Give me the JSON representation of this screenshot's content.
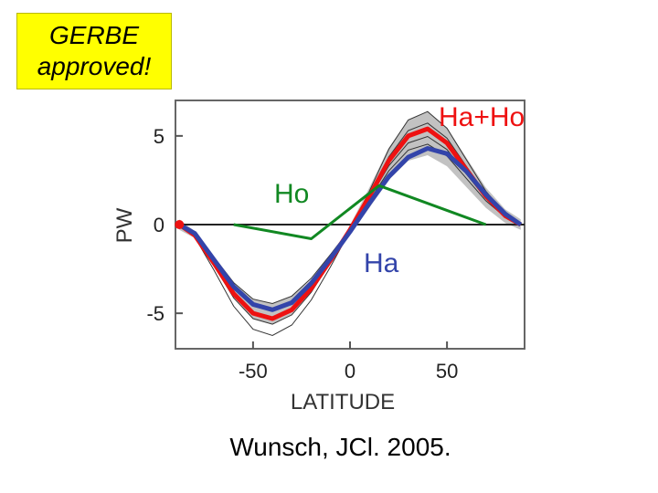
{
  "stamp": {
    "line1": "GERBE",
    "line2": "approved!"
  },
  "citation": "Wunsch, JCl. 2005.",
  "chart_data": {
    "type": "line",
    "xlabel": "LATITUDE",
    "ylabel": "PW",
    "xlim": [
      -90,
      90
    ],
    "ylim": [
      -7,
      7
    ],
    "xticks": [
      -50,
      0,
      50
    ],
    "yticks": [
      5,
      0,
      -5
    ],
    "grid": false,
    "colors": {
      "total": "#ee1111",
      "atmosphere": "#3344aa",
      "ocean": "#118822",
      "ensemble": "#999999"
    },
    "callouts": {
      "total": "Ha+Ho",
      "ocean": "Ho",
      "atmosphere": "Ha"
    },
    "series": [
      {
        "key": "total",
        "x": [
          -88,
          -80,
          -70,
          -60,
          -50,
          -40,
          -30,
          -20,
          -10,
          0,
          10,
          20,
          30,
          40,
          50,
          60,
          70,
          80,
          88
        ],
        "y": [
          0,
          -0.6,
          -2.2,
          -3.9,
          -5.0,
          -5.3,
          -4.8,
          -3.6,
          -2.0,
          -0.3,
          1.6,
          3.6,
          5.0,
          5.4,
          4.6,
          3.1,
          1.6,
          0.5,
          0
        ]
      },
      {
        "key": "atmosphere",
        "x": [
          -88,
          -80,
          -70,
          -60,
          -50,
          -40,
          -30,
          -20,
          -10,
          0,
          10,
          20,
          30,
          40,
          50,
          60,
          70,
          80,
          88
        ],
        "y": [
          0,
          -0.5,
          -2.0,
          -3.5,
          -4.5,
          -4.8,
          -4.4,
          -3.3,
          -1.9,
          -0.4,
          1.2,
          2.7,
          3.8,
          4.3,
          4.0,
          3.0,
          1.7,
          0.6,
          0
        ]
      },
      {
        "key": "ocean",
        "x": [
          -60,
          -20,
          15,
          70
        ],
        "y": [
          0,
          -0.8,
          2.2,
          0
        ]
      }
    ]
  }
}
